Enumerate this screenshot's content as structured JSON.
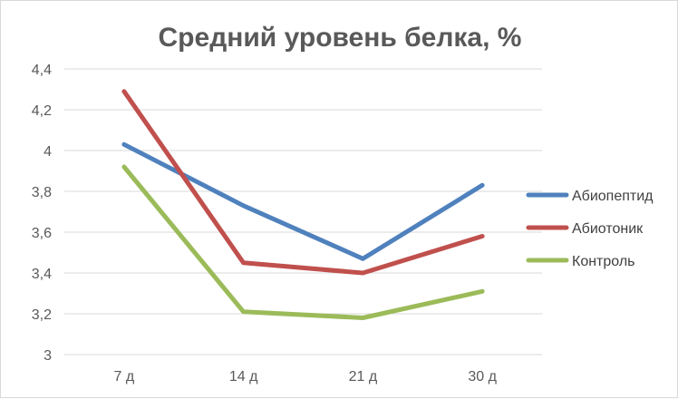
{
  "chart_data": {
    "type": "line",
    "title": "Средний уровень белка, %",
    "xlabel": "",
    "ylabel": "",
    "categories": [
      "7 д",
      "14 д",
      "21 д",
      "30 д"
    ],
    "ylim": [
      3,
      4.4
    ],
    "yticks": [
      3,
      3.2,
      3.4,
      3.6,
      3.8,
      4,
      4.2,
      4.4
    ],
    "ytick_labels": [
      "3",
      "3,2",
      "3,4",
      "3,6",
      "3,8",
      "4",
      "4,2",
      "4,4"
    ],
    "grid": true,
    "legend_position": "right",
    "series": [
      {
        "name": "Абиопептид",
        "color": "#4f81bd",
        "values": [
          4.03,
          3.73,
          3.47,
          3.83
        ]
      },
      {
        "name": "Абиотоник",
        "color": "#c0504d",
        "values": [
          4.29,
          3.45,
          3.4,
          3.58
        ]
      },
      {
        "name": "Контроль",
        "color": "#9bbb59",
        "values": [
          3.92,
          3.21,
          3.18,
          3.31
        ]
      }
    ]
  }
}
